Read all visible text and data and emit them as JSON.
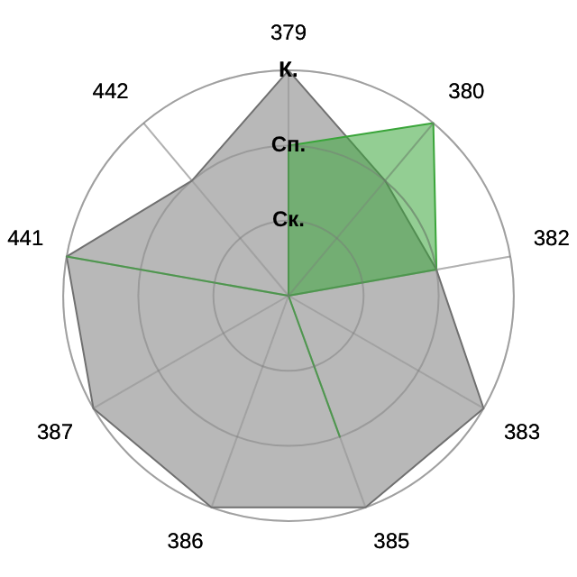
{
  "chart_data": {
    "type": "radar",
    "categories": [
      "379",
      "380",
      "382",
      "383",
      "385",
      "386",
      "387",
      "441",
      "442"
    ],
    "series": [
      {
        "color": "#b8b8b8",
        "values": [
          3,
          2,
          2,
          3,
          3,
          3,
          3,
          3,
          2
        ]
      },
      {
        "color": "#3aa53a",
        "values": [
          2,
          3,
          2,
          0,
          2,
          0,
          0,
          3,
          0
        ]
      }
    ],
    "ylim": [
      0,
      3
    ],
    "yticks": [
      {
        "value": 1,
        "label": "Ск."
      },
      {
        "value": 2,
        "label": "Сп."
      },
      {
        "value": 3,
        "label": "К."
      }
    ],
    "grid": true,
    "legend": false,
    "marker": "none"
  }
}
